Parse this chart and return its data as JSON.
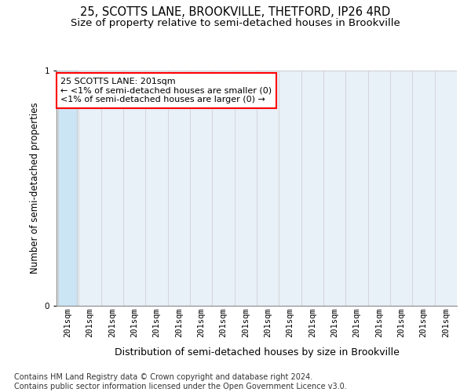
{
  "title_line1": "25, SCOTTS LANE, BROOKVILLE, THETFORD, IP26 4RD",
  "title_line2": "Size of property relative to semi-detached houses in Brookville",
  "xlabel": "Distribution of semi-detached houses by size in Brookville",
  "ylabel": "Number of semi-detached properties",
  "footnote": "Contains HM Land Registry data © Crown copyright and database right 2024.\nContains public sector information licensed under the Open Government Licence v3.0.",
  "annotation_title": "25 SCOTTS LANE: 201sqm",
  "annotation_line1": "← <1% of semi-detached houses are smaller (0)",
  "annotation_line2": "<1% of semi-detached houses are larger (0) →",
  "bar_color": "#cce5f5",
  "bar_edge_color": "#bbbbbb",
  "grid_color": "#cccccc",
  "background_color": "#e8f0f8",
  "annotation_box_color": "white",
  "annotation_box_edge": "red",
  "n_bars": 18,
  "bar_values": [
    1,
    0,
    0,
    0,
    0,
    0,
    0,
    0,
    0,
    0,
    0,
    0,
    0,
    0,
    0,
    0,
    0,
    0
  ],
  "tick_labels": [
    "201sqm",
    "201sqm",
    "201sqm",
    "201sqm",
    "201sqm",
    "201sqm",
    "201sqm",
    "201sqm",
    "201sqm",
    "201sqm",
    "201sqm",
    "201sqm",
    "201sqm",
    "201sqm",
    "201sqm",
    "201sqm",
    "201sqm",
    "201sqm"
  ],
  "ylim": [
    0,
    1
  ],
  "yticks": [
    0,
    1
  ],
  "title_fontsize": 10.5,
  "subtitle_fontsize": 9.5,
  "xlabel_fontsize": 9,
  "ylabel_fontsize": 8.5,
  "tick_fontsize": 7.5,
  "footnote_fontsize": 7,
  "annotation_fontsize": 8
}
